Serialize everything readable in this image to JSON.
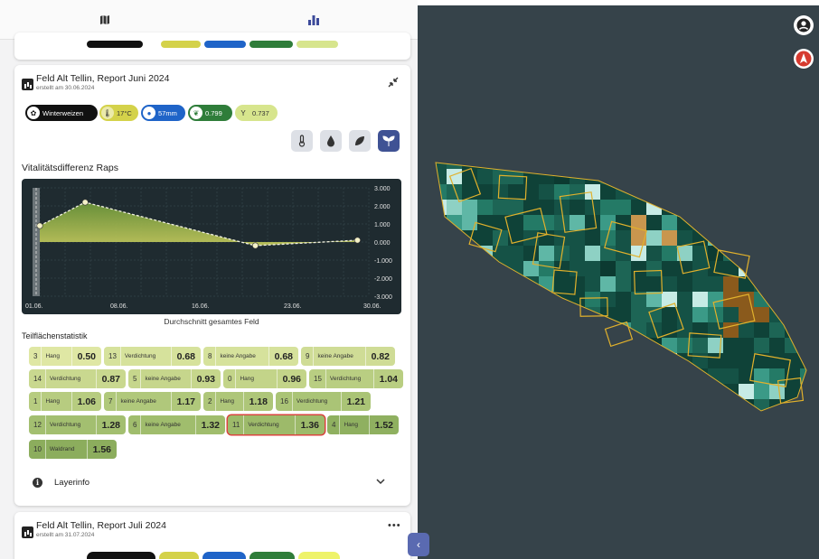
{
  "tabs": [
    {
      "name": "map-icon",
      "active": false
    },
    {
      "name": "chart-icon",
      "active": true
    }
  ],
  "report_june": {
    "title": "Feld Alt Tellin, Report Juni 2024",
    "created": "erstellt am 30.06.2024",
    "chips": {
      "crop": "Winterweizen",
      "temperature": "17°C",
      "precipitation": "57mm",
      "ndvi": "0.799",
      "vitality": "0.737"
    },
    "layer_buttons": [
      {
        "name": "temperature-layer-icon",
        "active": false
      },
      {
        "name": "water-layer-icon",
        "active": false
      },
      {
        "name": "leaf-layer-icon",
        "active": false
      },
      {
        "name": "plant-layer-icon",
        "active": true
      }
    ],
    "chart_title": "Vitalitätsdifferenz Raps",
    "chart_caption": "Durchschnitt gesamtes Feld",
    "stats_title": "Teilflächenstatistik",
    "layerinfo_label": "Layerinfo"
  },
  "chart_data": {
    "type": "area",
    "title": "Vitalitätsdifferenz Raps",
    "xlabel": "Durchschnitt gesamtes Feld",
    "x_tick_labels": [
      "01.06.",
      "08.06.",
      "16.06.",
      "23.06.",
      "30.06."
    ],
    "y_tick_labels": [
      "3.000",
      "2.000",
      "1.000",
      "0.000",
      "-1.000",
      "-2.000",
      "-3.000"
    ],
    "ylim": [
      -3,
      3
    ],
    "xlim": [
      1,
      30
    ],
    "points": [
      {
        "x": 1,
        "y": 0.9
      },
      {
        "x": 5,
        "y": 2.2
      },
      {
        "x": 20,
        "y": -0.2
      },
      {
        "x": 29,
        "y": 0.1
      }
    ],
    "grid": true,
    "colors": {
      "background": "#1f2b30",
      "fill": "#7a9a3c",
      "line": "#f0f0e0"
    }
  },
  "stats": [
    {
      "num": "3",
      "label": "Hang",
      "value": "0.50",
      "color": "#dfe7a4"
    },
    {
      "num": "13",
      "label": "Verdichtung",
      "value": "0.68",
      "color": "#d6e29c"
    },
    {
      "num": "8",
      "label": "keine Angabe",
      "value": "0.68",
      "color": "#d6e29c"
    },
    {
      "num": "9",
      "label": "keine Angabe",
      "value": "0.82",
      "color": "#cfdc96"
    },
    {
      "num": "14",
      "label": "Verdichtung",
      "value": "0.87",
      "color": "#c9d88f"
    },
    {
      "num": "5",
      "label": "keine Angabe",
      "value": "0.93",
      "color": "#c6d68c"
    },
    {
      "num": "0",
      "label": "Hang",
      "value": "0.96",
      "color": "#c3d489"
    },
    {
      "num": "15",
      "label": "Verdichtung",
      "value": "1.04",
      "color": "#b9ce82"
    },
    {
      "num": "1",
      "label": "Hang",
      "value": "1.06",
      "color": "#b7cc80"
    },
    {
      "num": "7",
      "label": "keine Angabe",
      "value": "1.17",
      "color": "#b0c87b"
    },
    {
      "num": "2",
      "label": "Hang",
      "value": "1.18",
      "color": "#aec679"
    },
    {
      "num": "16",
      "label": "Verdichtung",
      "value": "1.21",
      "color": "#aac476"
    },
    {
      "num": "12",
      "label": "Verdichtung",
      "value": "1.28",
      "color": "#a3bf70"
    },
    {
      "num": "6",
      "label": "keine Angabe",
      "value": "1.32",
      "color": "#a0bd6d"
    },
    {
      "num": "11",
      "label": "Verdichtung",
      "value": "1.36",
      "color": "#9dba6a",
      "selected": true
    },
    {
      "num": "4",
      "label": "Hang",
      "value": "1.52",
      "color": "#8fb060"
    },
    {
      "num": "10",
      "label": "Waldrand",
      "value": "1.56",
      "color": "#8cad5d"
    }
  ],
  "report_july": {
    "title": "Feld Alt Tellin, Report Juli 2024",
    "created": "erstellt am 31.07.2024"
  },
  "map": {
    "background": "#36434a",
    "buttons": [
      "account-icon",
      "north-arrow-icon"
    ],
    "collapse": "‹"
  }
}
